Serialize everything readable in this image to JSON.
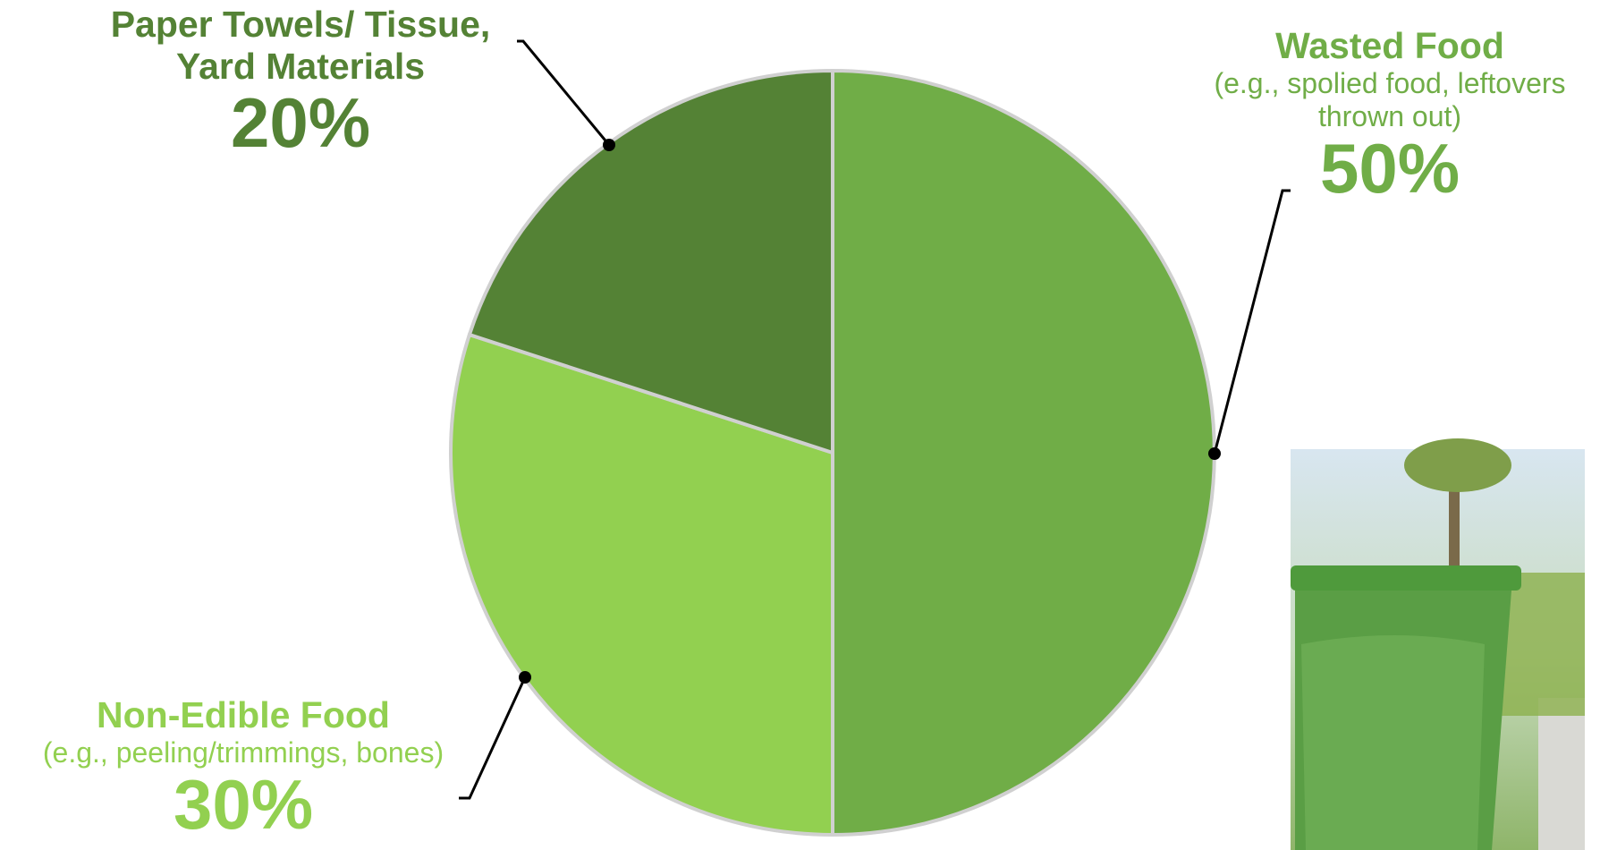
{
  "chart_data": {
    "type": "pie",
    "categories": [
      "Wasted Food",
      "Non-Edible Food",
      "Paper Towels/ Tissue, Yard Materials"
    ],
    "descriptions": [
      "(e.g., spolied food, leftovers thrown out)",
      "(e.g., peeling/trimmings, bones)",
      null
    ],
    "values": [
      50,
      30,
      20
    ],
    "value_labels": [
      "50%",
      "30%",
      "20%"
    ],
    "colors": [
      "#70ad47",
      "#92d050",
      "#548235"
    ]
  }
}
